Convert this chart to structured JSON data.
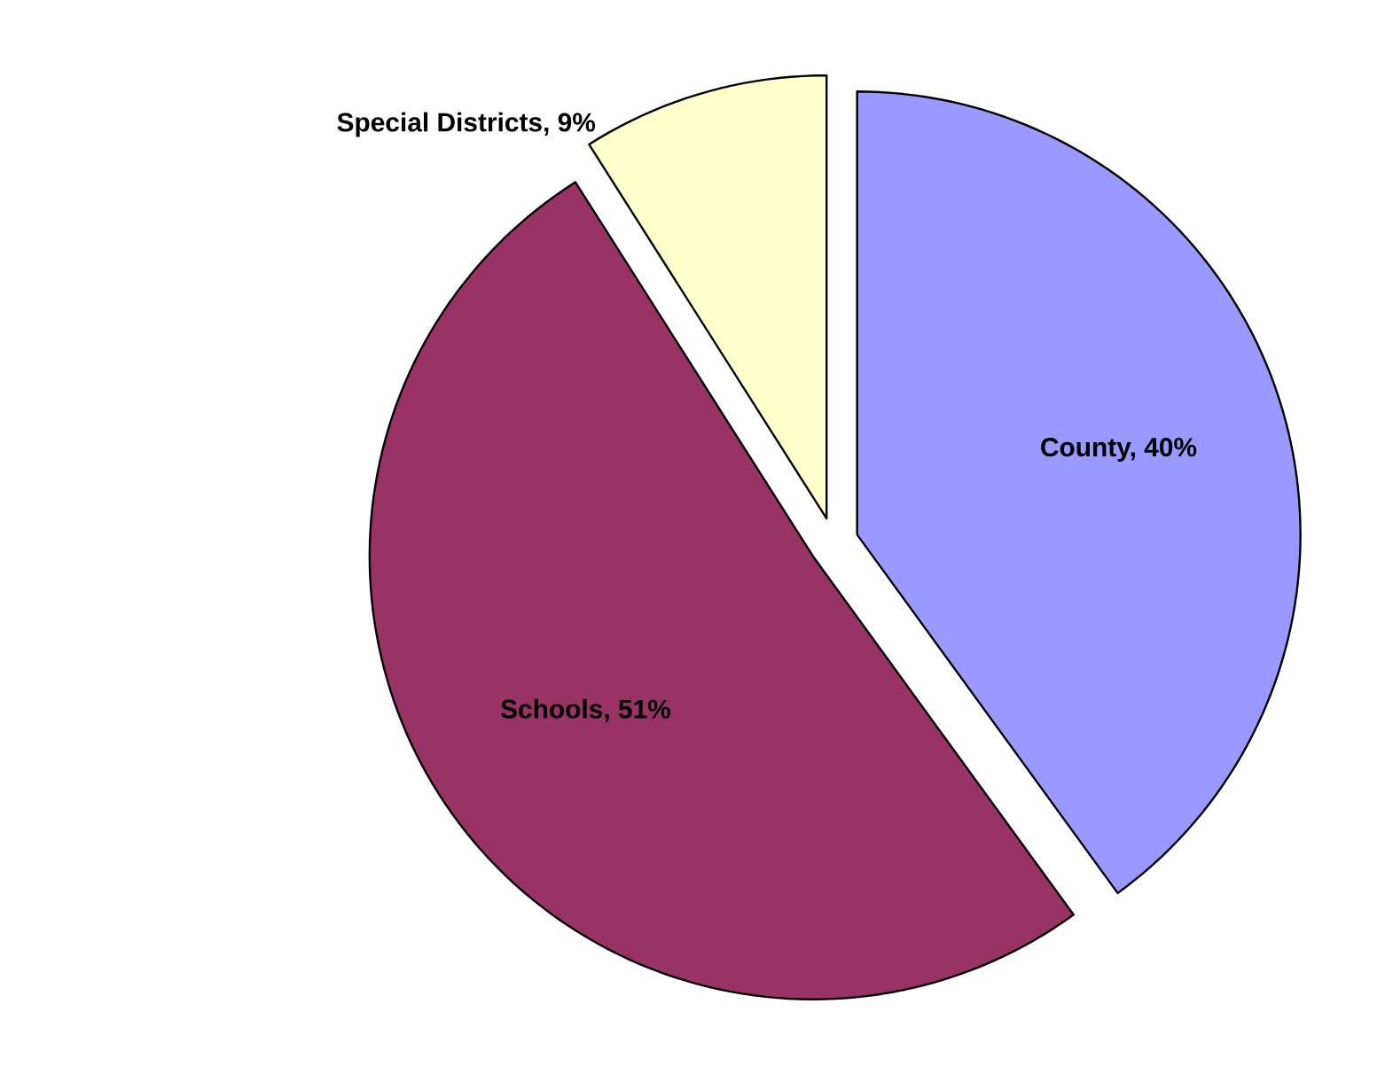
{
  "chart_data": {
    "type": "pie",
    "categories": [
      "County, 40%",
      "Schools, 51%",
      "Special Districts, 9%"
    ],
    "values": [
      40,
      51,
      9
    ],
    "colors": [
      "#9999ff",
      "#993366",
      "#ffffcc"
    ]
  }
}
